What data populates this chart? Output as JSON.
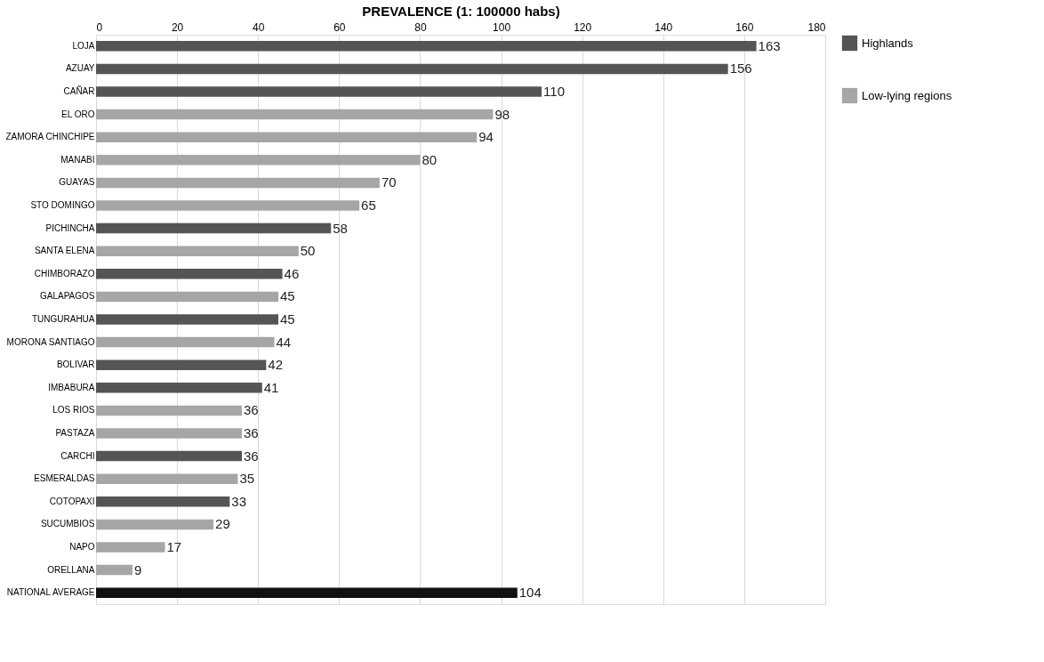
{
  "chart_data": {
    "type": "bar",
    "orientation": "horizontal",
    "xlabel": "PREVALENCE   (1: 100000  habs)",
    "categories": [
      "LOJA",
      "AZUAY",
      "CAÑAR",
      "EL ORO",
      "ZAMORA CHINCHIPE",
      "MANABI",
      "GUAYAS",
      "STO DOMINGO",
      "PICHINCHA",
      "SANTA ELENA",
      "CHIMBORAZO",
      "GALAPAGOS",
      "TUNGURAHUA",
      "MORONA SANTIAGO",
      "BOLIVAR",
      "IMBABURA",
      "LOS RIOS",
      "PASTAZA",
      "CARCHI",
      "ESMERALDAS",
      "COTOPAXI",
      "SUCUMBIOS",
      "NAPO",
      "ORELLANA",
      "NATIONAL AVERAGE"
    ],
    "series": [
      {
        "name": "Highlands",
        "color": "#555555",
        "values": [
          163,
          156,
          110,
          null,
          null,
          null,
          null,
          null,
          58,
          null,
          46,
          null,
          45,
          null,
          42,
          41,
          null,
          null,
          36,
          null,
          33,
          null,
          null,
          null,
          null
        ]
      },
      {
        "name": "Low-lying regions",
        "color": "#a6a6a6",
        "values": [
          null,
          null,
          null,
          98,
          94,
          80,
          70,
          65,
          null,
          50,
          null,
          45,
          null,
          44,
          null,
          null,
          36,
          36,
          null,
          35,
          null,
          29,
          17,
          9,
          null
        ]
      },
      {
        "color": "#111111",
        "values": [
          null,
          null,
          null,
          null,
          null,
          null,
          null,
          null,
          null,
          null,
          null,
          null,
          null,
          null,
          null,
          null,
          null,
          null,
          null,
          null,
          null,
          null,
          null,
          null,
          104
        ]
      }
    ],
    "xlim": [
      0,
      180
    ],
    "xticks": [
      0,
      20,
      40,
      60,
      80,
      100,
      120,
      140,
      160,
      180
    ],
    "grid": "x",
    "legend": "right",
    "data_labels": true
  }
}
